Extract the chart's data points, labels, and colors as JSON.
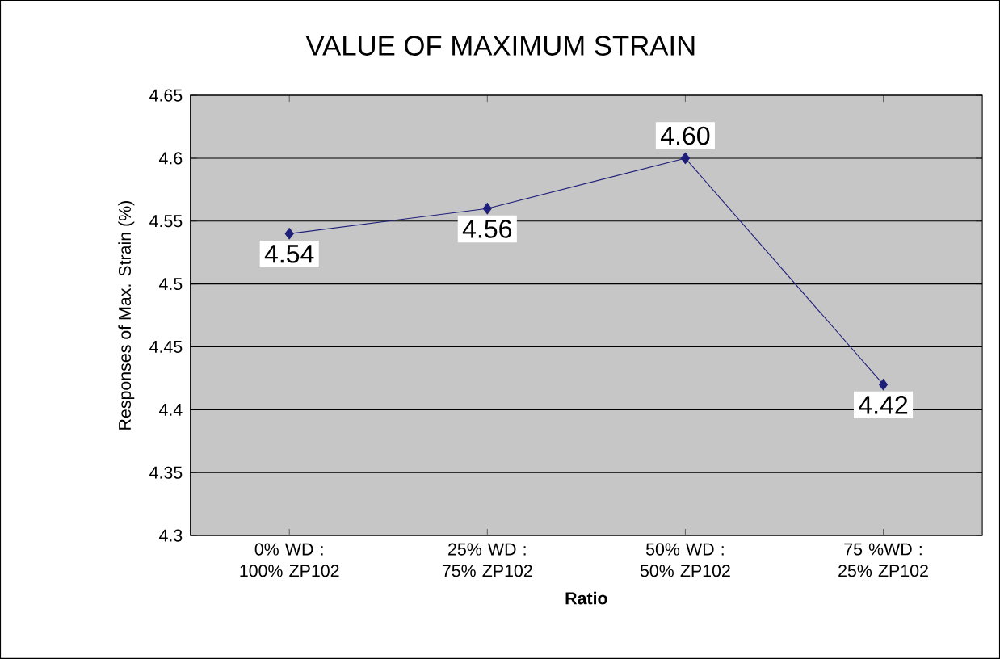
{
  "chart_data": {
    "type": "line",
    "title": "VALUE OF MAXIMUM STRAIN",
    "xlabel": "Ratio",
    "ylabel": "Responses of Max. Strain (%)",
    "categories": [
      "0% WD : 100% ZP102",
      "25% WD : 75% ZP102",
      "50% WD : 50% ZP102",
      "75 %WD : 25% ZP102"
    ],
    "series": [
      {
        "color": "#1f1f7a",
        "values": [
          4.54,
          4.56,
          4.6,
          4.42
        ],
        "value_labels": [
          "4.54",
          "4.56",
          "4.60",
          "4.42"
        ]
      }
    ],
    "ylim": [
      4.3,
      4.65
    ],
    "yticks": [
      4.3,
      4.35,
      4.4,
      4.45,
      4.5,
      4.55,
      4.6,
      4.65
    ],
    "grid": "y",
    "marker": "diamond"
  }
}
